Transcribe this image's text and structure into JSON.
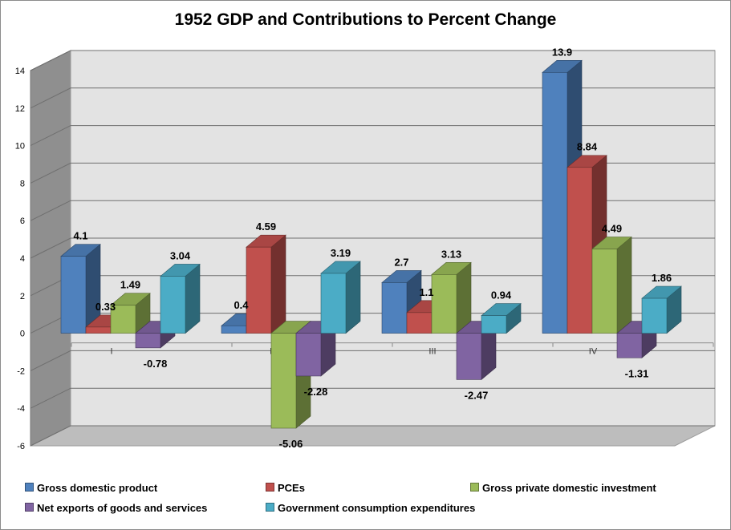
{
  "chart_data": {
    "type": "bar",
    "title": "1952 GDP and Contributions to Percent Change",
    "xlabel": "",
    "ylabel": "",
    "categories": [
      "I",
      "II",
      "III",
      "IV"
    ],
    "ylim": [
      -6,
      14
    ],
    "yticks": [
      -6,
      -4,
      -2,
      0,
      2,
      4,
      6,
      8,
      10,
      12,
      14
    ],
    "ytick_labels": [
      "-6",
      "-4",
      "-2",
      "0",
      "2",
      "4",
      "6",
      "8",
      "10",
      "12",
      "14"
    ],
    "grid": true,
    "legend_position": "bottom",
    "series": [
      {
        "name": "Gross domestic product",
        "color": "#4F81BD",
        "values": [
          4.1,
          0.4,
          2.7,
          13.9
        ],
        "labels": [
          "4.1",
          "0.4",
          "2.7",
          "13.9"
        ]
      },
      {
        "name": "PCEs",
        "color": "#C0504D",
        "values": [
          0.33,
          4.59,
          1.1,
          8.84
        ],
        "labels": [
          "0.33",
          "4.59",
          "1.1",
          "8.84"
        ]
      },
      {
        "name": "Gross private domestic investment",
        "color": "#9BBB59",
        "values": [
          1.49,
          -5.06,
          3.13,
          4.49
        ],
        "labels": [
          "1.49",
          "-5.06",
          "3.13",
          "4.49"
        ]
      },
      {
        "name": "Net exports of goods and services",
        "color": "#8064A2",
        "values": [
          -0.78,
          -2.28,
          -2.47,
          -1.31
        ],
        "labels": [
          "-0.78",
          "-2.28",
          "-2.47",
          "-1.31"
        ]
      },
      {
        "name": "Government consumption expenditures",
        "color": "#4BACC6",
        "values": [
          3.04,
          3.19,
          0.94,
          1.86
        ],
        "labels": [
          "3.04",
          "3.19",
          "0.94",
          "1.86"
        ]
      }
    ]
  }
}
